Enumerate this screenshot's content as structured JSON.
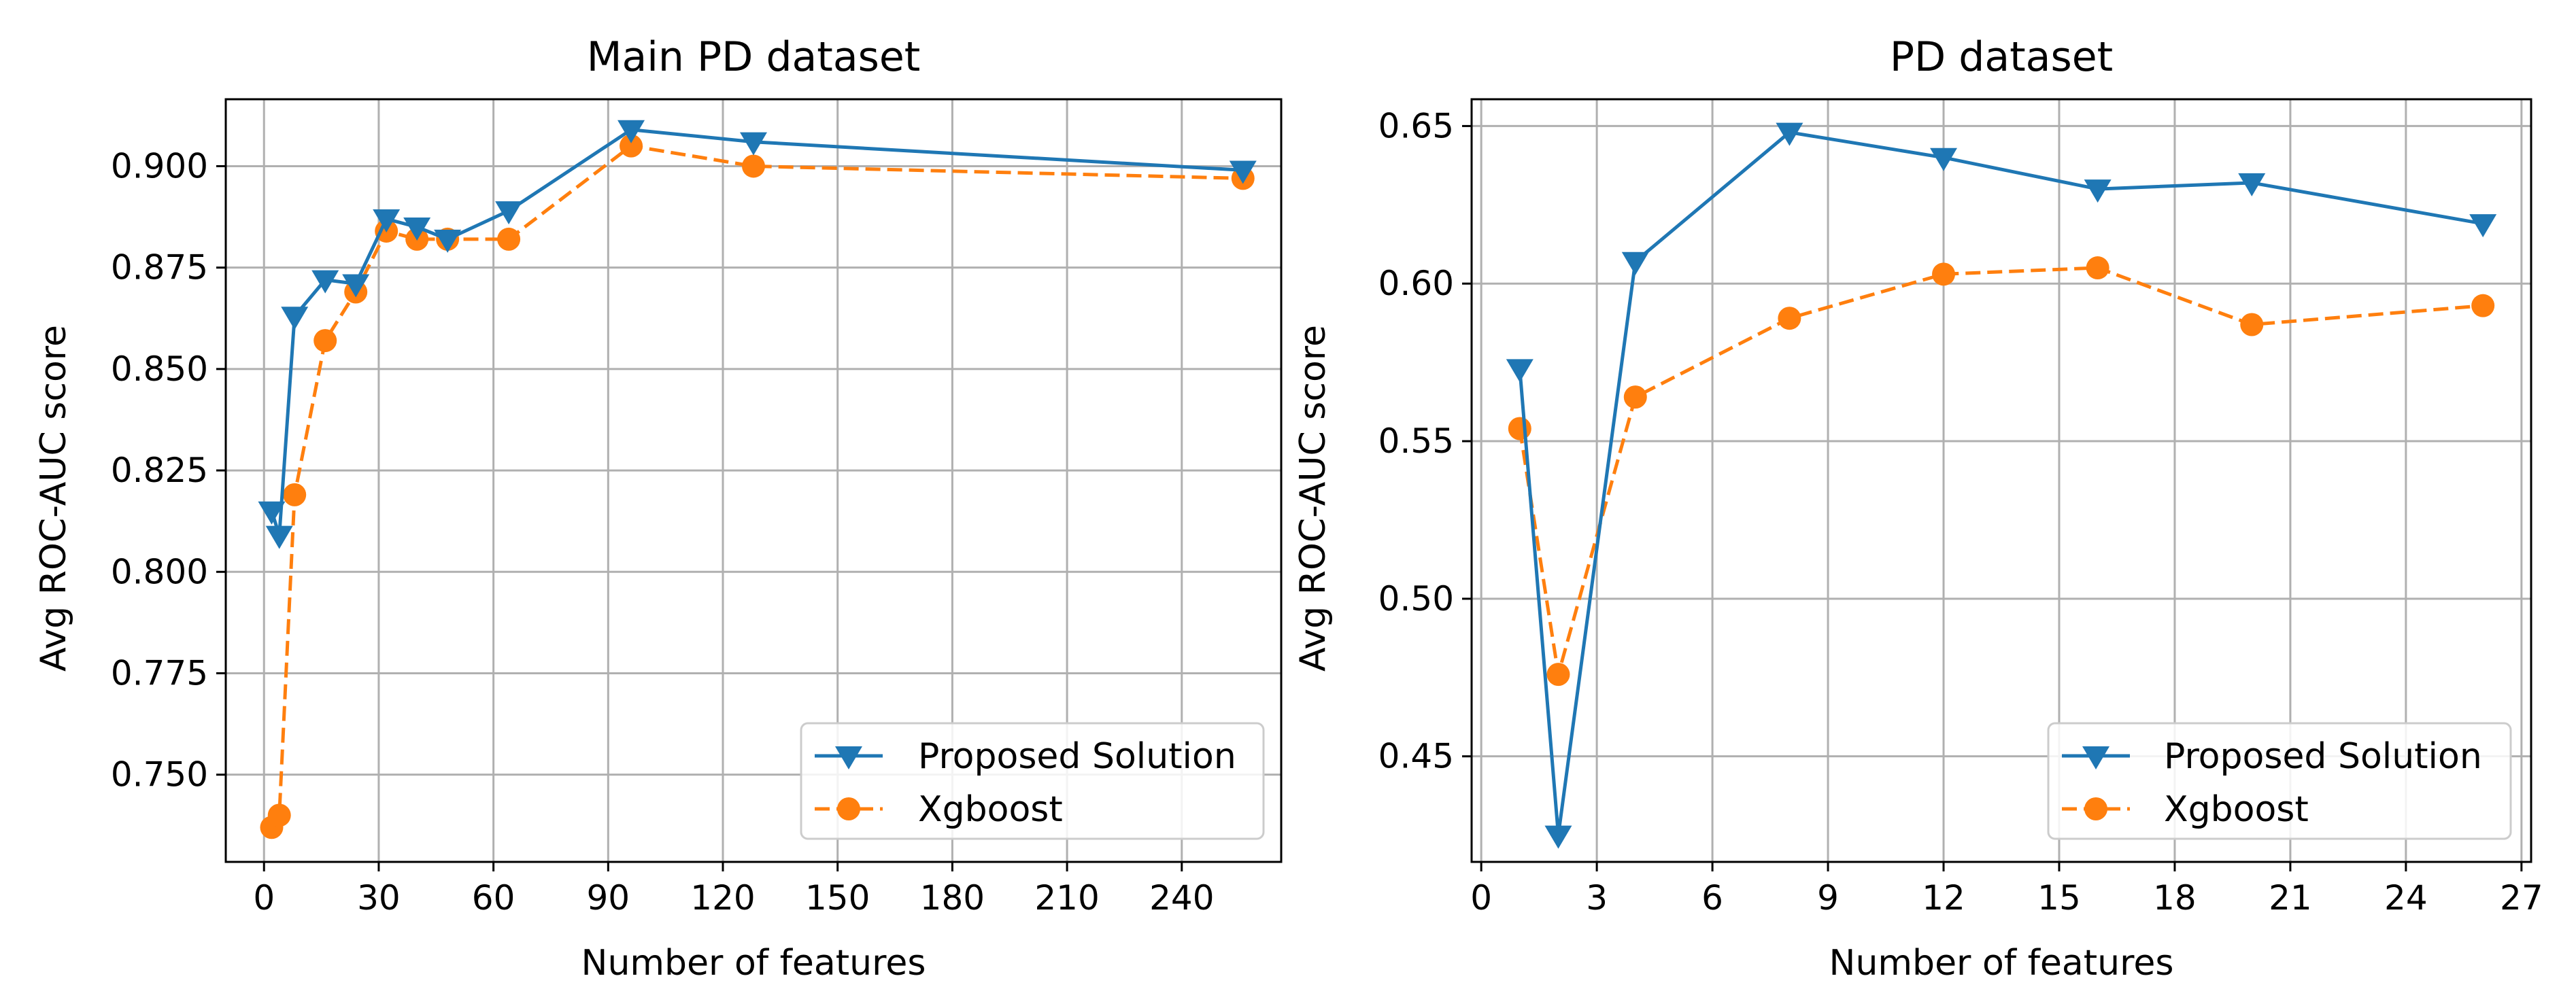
{
  "chart_data": [
    {
      "type": "line",
      "title": "Main PD dataset",
      "xlabel": "Number of features",
      "ylabel": "Avg ROC-AUC score",
      "xlim": [
        -10,
        266
      ],
      "ylim": [
        0.7285,
        0.9165
      ],
      "xticks": [
        0,
        30,
        60,
        90,
        120,
        150,
        180,
        210,
        240
      ],
      "yticks": [
        0.75,
        0.775,
        0.8,
        0.825,
        0.85,
        0.875,
        0.9
      ],
      "xtick_labels": [
        "0",
        "30",
        "60",
        "90",
        "120",
        "150",
        "180",
        "210",
        "240"
      ],
      "ytick_labels": [
        "0.750",
        "0.775",
        "0.800",
        "0.825",
        "0.850",
        "0.875",
        "0.900"
      ],
      "grid": true,
      "legend_position": "lower-right",
      "series": [
        {
          "name": "Proposed Solution",
          "color": "#1f77b4",
          "marker": "triangle-down",
          "linestyle": "solid",
          "x": [
            2,
            4,
            8,
            16,
            24,
            32,
            40,
            48,
            64,
            96,
            128,
            256
          ],
          "y": [
            0.815,
            0.809,
            0.863,
            0.872,
            0.871,
            0.887,
            0.885,
            0.882,
            0.889,
            0.909,
            0.906,
            0.899
          ]
        },
        {
          "name": "Xgboost",
          "color": "#ff7f0e",
          "marker": "circle",
          "linestyle": "dashed",
          "x": [
            2,
            4,
            8,
            16,
            24,
            32,
            40,
            48,
            64,
            96,
            128,
            256
          ],
          "y": [
            0.737,
            0.74,
            0.819,
            0.857,
            0.869,
            0.884,
            0.882,
            0.882,
            0.882,
            0.905,
            0.9,
            0.897
          ]
        }
      ]
    },
    {
      "type": "line",
      "title": "PD dataset",
      "xlabel": "Number of features",
      "ylabel": "Avg ROC-AUC score",
      "xlim": [
        -0.25,
        27.25
      ],
      "ylim": [
        0.4165,
        0.6585
      ],
      "xticks": [
        0,
        3,
        6,
        9,
        12,
        15,
        18,
        21,
        24,
        27
      ],
      "yticks": [
        0.45,
        0.5,
        0.55,
        0.6,
        0.65
      ],
      "xtick_labels": [
        "0",
        "3",
        "6",
        "9",
        "12",
        "15",
        "18",
        "21",
        "24",
        "27"
      ],
      "ytick_labels": [
        "0.45",
        "0.50",
        "0.55",
        "0.60",
        "0.65"
      ],
      "grid": true,
      "legend_position": "lower-right",
      "series": [
        {
          "name": "Proposed Solution",
          "color": "#1f77b4",
          "marker": "triangle-down",
          "linestyle": "solid",
          "x": [
            1,
            2,
            4,
            8,
            12,
            16,
            20,
            26
          ],
          "y": [
            0.573,
            0.425,
            0.607,
            0.648,
            0.64,
            0.63,
            0.632,
            0.619
          ]
        },
        {
          "name": "Xgboost",
          "color": "#ff7f0e",
          "marker": "circle",
          "linestyle": "dashed",
          "x": [
            1,
            2,
            4,
            8,
            12,
            16,
            20,
            26
          ],
          "y": [
            0.554,
            0.476,
            0.564,
            0.589,
            0.603,
            0.605,
            0.587,
            0.593
          ]
        }
      ]
    }
  ]
}
